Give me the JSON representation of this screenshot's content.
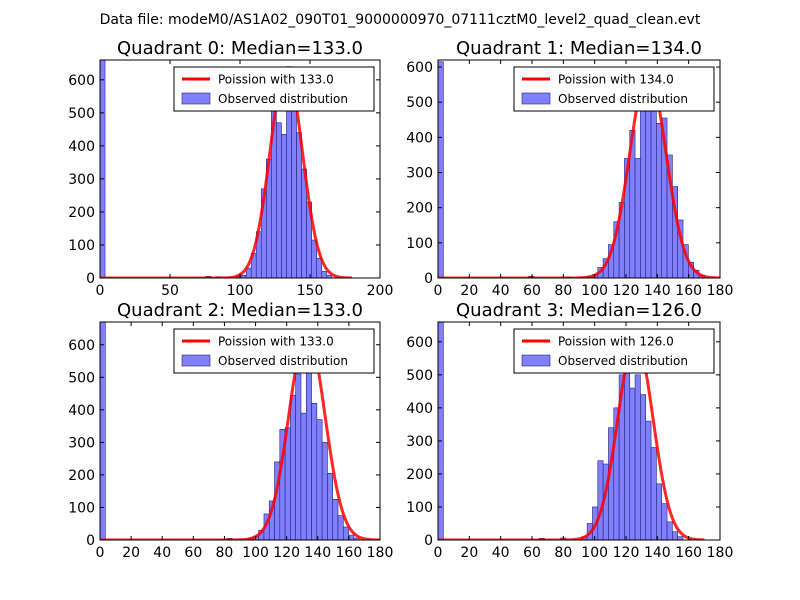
{
  "suptitle": "Data file: modeM0/AS1A02_090T01_9000000970_07111cztM0_level2_quad_clean.evt",
  "colors": {
    "hist_fill": "#8080ff",
    "hist_edge": "#22227a",
    "fit_line": "#ff0000",
    "frame": "#000000"
  },
  "chart_data": [
    {
      "type": "bar",
      "title": "Quadrant 0: Median=133.0",
      "legend": {
        "fit_label": "Poission with 133.0",
        "hist_label": "Observed distribution",
        "placement": "upper-right"
      },
      "xlim": [
        0,
        200
      ],
      "ylim": [
        0,
        660
      ],
      "xticks": [
        0,
        50,
        100,
        150,
        200
      ],
      "xtick_labels": [
        "0",
        "50",
        "100",
        "150",
        "200"
      ],
      "yticks": [
        0,
        100,
        200,
        300,
        400,
        500,
        600
      ],
      "ytick_labels": [
        "0",
        "100",
        "200",
        "300",
        "400",
        "500",
        "600"
      ],
      "bin_width": 3.6,
      "bins": [
        {
          "x": 0,
          "count": 660
        },
        {
          "x": 75.6,
          "count": 5
        },
        {
          "x": 82.8,
          "count": 4
        },
        {
          "x": 97.2,
          "count": 6
        },
        {
          "x": 100.8,
          "count": 8
        },
        {
          "x": 104.4,
          "count": 30
        },
        {
          "x": 108,
          "count": 75
        },
        {
          "x": 111.6,
          "count": 140
        },
        {
          "x": 115.2,
          "count": 270
        },
        {
          "x": 118.8,
          "count": 360
        },
        {
          "x": 122.4,
          "count": 510
        },
        {
          "x": 126,
          "count": 470
        },
        {
          "x": 129.6,
          "count": 435
        },
        {
          "x": 133.2,
          "count": 640
        },
        {
          "x": 136.8,
          "count": 560
        },
        {
          "x": 140.4,
          "count": 440
        },
        {
          "x": 144,
          "count": 330
        },
        {
          "x": 147.6,
          "count": 230
        },
        {
          "x": 151.2,
          "count": 115
        },
        {
          "x": 154.8,
          "count": 60
        },
        {
          "x": 158.4,
          "count": 20
        },
        {
          "x": 162,
          "count": 8
        }
      ],
      "fit": {
        "mu": 133,
        "sigma": 11.5,
        "peak": 635,
        "x_range": [
          0,
          180
        ]
      }
    },
    {
      "type": "bar",
      "title": "Quadrant 1: Median=134.0",
      "legend": {
        "fit_label": "Poission with 134.0",
        "hist_label": "Observed distribution",
        "placement": "upper-right"
      },
      "xlim": [
        0,
        180
      ],
      "ylim": [
        0,
        620
      ],
      "xticks": [
        0,
        20,
        40,
        60,
        80,
        100,
        120,
        140,
        160,
        180
      ],
      "xtick_labels": [
        "0",
        "20",
        "40",
        "60",
        "80",
        "100",
        "120",
        "140",
        "160",
        "180"
      ],
      "yticks": [
        0,
        100,
        200,
        300,
        400,
        500,
        600
      ],
      "ytick_labels": [
        "0",
        "100",
        "200",
        "300",
        "400",
        "500",
        "600"
      ],
      "bin_width": 3.4,
      "bins": [
        {
          "x": 0,
          "count": 615
        },
        {
          "x": 57.8,
          "count": 5
        },
        {
          "x": 81.6,
          "count": 3
        },
        {
          "x": 95.2,
          "count": 5
        },
        {
          "x": 98.6,
          "count": 10
        },
        {
          "x": 102,
          "count": 30
        },
        {
          "x": 105.4,
          "count": 55
        },
        {
          "x": 108.8,
          "count": 95
        },
        {
          "x": 112.2,
          "count": 160
        },
        {
          "x": 115.6,
          "count": 215
        },
        {
          "x": 119,
          "count": 340
        },
        {
          "x": 122.4,
          "count": 420
        },
        {
          "x": 125.8,
          "count": 340
        },
        {
          "x": 129.2,
          "count": 490
        },
        {
          "x": 132.6,
          "count": 500
        },
        {
          "x": 136,
          "count": 580
        },
        {
          "x": 139.4,
          "count": 440
        },
        {
          "x": 142.8,
          "count": 455
        },
        {
          "x": 146.2,
          "count": 350
        },
        {
          "x": 149.6,
          "count": 260
        },
        {
          "x": 153,
          "count": 165
        },
        {
          "x": 156.4,
          "count": 95
        },
        {
          "x": 159.8,
          "count": 45
        },
        {
          "x": 163.2,
          "count": 22
        },
        {
          "x": 166.6,
          "count": 8
        }
      ],
      "fit": {
        "mu": 134,
        "sigma": 11.6,
        "peak": 585,
        "x_range": [
          0,
          180
        ]
      }
    },
    {
      "type": "bar",
      "title": "Quadrant 2: Median=133.0",
      "legend": {
        "fit_label": "Poission with 133.0",
        "hist_label": "Observed distribution",
        "placement": "upper-right"
      },
      "xlim": [
        0,
        180
      ],
      "ylim": [
        0,
        670
      ],
      "xticks": [
        0,
        20,
        40,
        60,
        80,
        100,
        120,
        140,
        160,
        180
      ],
      "xtick_labels": [
        "0",
        "20",
        "40",
        "60",
        "80",
        "100",
        "120",
        "140",
        "160",
        "180"
      ],
      "yticks": [
        0,
        100,
        200,
        300,
        400,
        500,
        600
      ],
      "ytick_labels": [
        "0",
        "100",
        "200",
        "300",
        "400",
        "500",
        "600"
      ],
      "bin_width": 3.4,
      "bins": [
        {
          "x": 0,
          "count": 670
        },
        {
          "x": 81.6,
          "count": 5
        },
        {
          "x": 95.2,
          "count": 6
        },
        {
          "x": 98.6,
          "count": 12
        },
        {
          "x": 102,
          "count": 30
        },
        {
          "x": 105.4,
          "count": 80
        },
        {
          "x": 108.8,
          "count": 120
        },
        {
          "x": 112.2,
          "count": 240
        },
        {
          "x": 115.6,
          "count": 340
        },
        {
          "x": 119,
          "count": 345
        },
        {
          "x": 122.4,
          "count": 445
        },
        {
          "x": 125.8,
          "count": 510
        },
        {
          "x": 129.2,
          "count": 390
        },
        {
          "x": 132.6,
          "count": 620
        },
        {
          "x": 136,
          "count": 420
        },
        {
          "x": 139.4,
          "count": 370
        },
        {
          "x": 142.8,
          "count": 300
        },
        {
          "x": 146.2,
          "count": 205
        },
        {
          "x": 149.6,
          "count": 125
        },
        {
          "x": 153,
          "count": 75
        },
        {
          "x": 156.4,
          "count": 40
        },
        {
          "x": 159.8,
          "count": 15
        },
        {
          "x": 163.2,
          "count": 6
        }
      ],
      "fit": {
        "mu": 133,
        "sigma": 11.5,
        "peak": 640,
        "x_range": [
          0,
          180
        ]
      }
    },
    {
      "type": "bar",
      "title": "Quadrant 3: Median=126.0",
      "legend": {
        "fit_label": "Poission with 126.0",
        "hist_label": "Observed distribution",
        "placement": "upper-right"
      },
      "xlim": [
        0,
        180
      ],
      "ylim": [
        0,
        660
      ],
      "xticks": [
        0,
        20,
        40,
        60,
        80,
        100,
        120,
        140,
        160,
        180
      ],
      "xtick_labels": [
        "0",
        "20",
        "40",
        "60",
        "80",
        "100",
        "120",
        "140",
        "160",
        "180"
      ],
      "yticks": [
        0,
        100,
        200,
        300,
        400,
        500,
        600
      ],
      "ytick_labels": [
        "0",
        "100",
        "200",
        "300",
        "400",
        "500",
        "600"
      ],
      "bin_width": 3.4,
      "bins": [
        {
          "x": 0,
          "count": 660
        },
        {
          "x": 64.6,
          "count": 5
        },
        {
          "x": 78.2,
          "count": 6
        },
        {
          "x": 91.8,
          "count": 10
        },
        {
          "x": 95.2,
          "count": 50
        },
        {
          "x": 98.6,
          "count": 100
        },
        {
          "x": 102,
          "count": 240
        },
        {
          "x": 105.4,
          "count": 230
        },
        {
          "x": 108.8,
          "count": 340
        },
        {
          "x": 112.2,
          "count": 400
        },
        {
          "x": 115.6,
          "count": 500
        },
        {
          "x": 119,
          "count": 560
        },
        {
          "x": 122.4,
          "count": 460
        },
        {
          "x": 125.8,
          "count": 500
        },
        {
          "x": 129.2,
          "count": 440
        },
        {
          "x": 132.6,
          "count": 360
        },
        {
          "x": 136,
          "count": 280
        },
        {
          "x": 139.4,
          "count": 170
        },
        {
          "x": 142.8,
          "count": 110
        },
        {
          "x": 146.2,
          "count": 55
        },
        {
          "x": 149.6,
          "count": 25
        },
        {
          "x": 153,
          "count": 10
        }
      ],
      "fit": {
        "mu": 126,
        "sigma": 11.2,
        "peak": 610,
        "x_range": [
          0,
          170
        ]
      }
    }
  ]
}
